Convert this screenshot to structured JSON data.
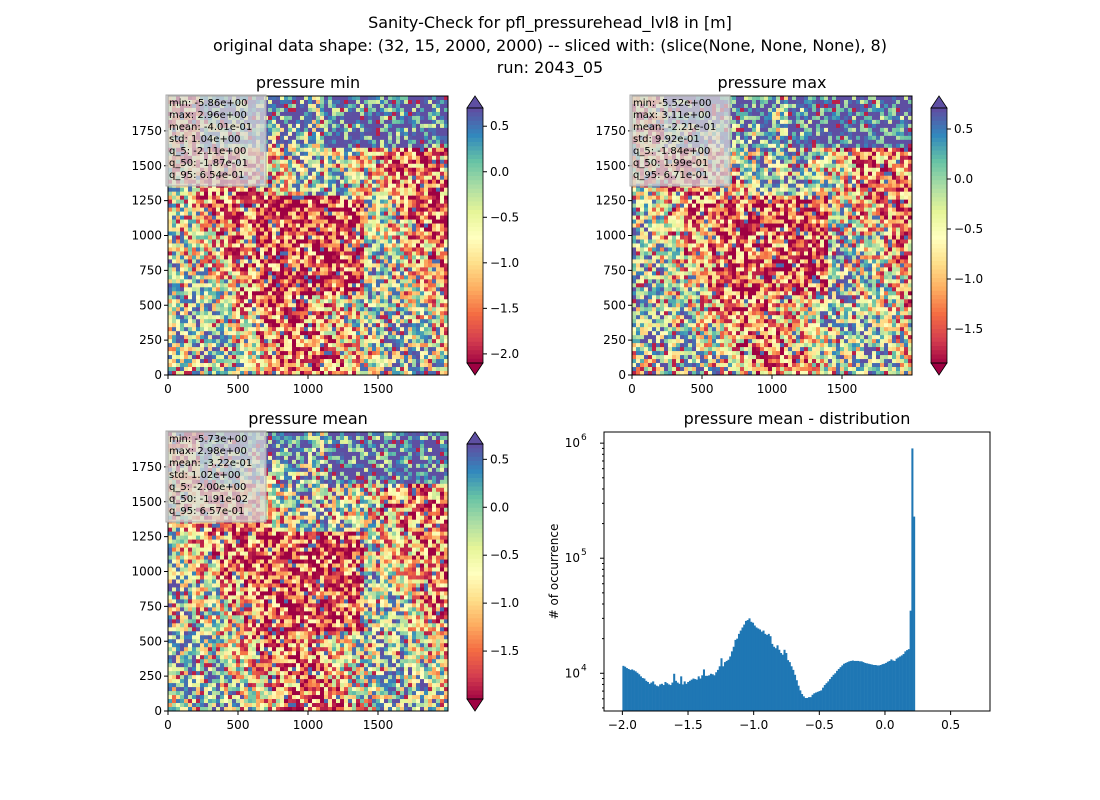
{
  "figure": {
    "title_lines": [
      "Sanity-Check for pfl_pressurehead_lvl8 in [m]",
      "original data shape: (32, 15, 2000, 2000) -- sliced with: (slice(None, None, None), 8)",
      "run: 2043_05"
    ]
  },
  "chart_data": [
    {
      "type": "heatmap",
      "title": "pressure min",
      "xticks": [
        "0",
        "500",
        "1000",
        "1500"
      ],
      "yticks": [
        "0",
        "250",
        "500",
        "750",
        "1000",
        "1250",
        "1500",
        "1750"
      ],
      "xlim": [
        0,
        2000
      ],
      "ylim": [
        0,
        2000
      ],
      "colorbar": {
        "ticks": [
          0.5,
          0.0,
          -0.5,
          -1.0,
          -1.5,
          -2.0
        ],
        "tick_labels": [
          "0.5",
          "0.0",
          "−0.5",
          "−1.0",
          "−1.5",
          "−2.0"
        ],
        "range": [
          -2.1,
          0.7
        ],
        "colormap": "Spectral",
        "extend": "both"
      },
      "stats": [
        "min: -5.86e+00",
        "max: 2.96e+00",
        "mean: -4.01e-01",
        "std: 1.04e+00",
        "q_5: -2.11e+00",
        "q_50: -1.87e-01",
        "q_95: 6.54e-01"
      ]
    },
    {
      "type": "heatmap",
      "title": "pressure max",
      "xticks": [
        "0",
        "500",
        "1000",
        "1500"
      ],
      "yticks": [
        "0",
        "250",
        "500",
        "750",
        "1000",
        "1250",
        "1500",
        "1750"
      ],
      "xlim": [
        0,
        2000
      ],
      "ylim": [
        0,
        2000
      ],
      "colorbar": {
        "ticks": [
          0.5,
          0.0,
          -0.5,
          -1.0,
          -1.5
        ],
        "tick_labels": [
          "0.5",
          "0.0",
          "−0.5",
          "−1.0",
          "−1.5"
        ],
        "range": [
          -1.84,
          0.71
        ],
        "colormap": "Spectral",
        "extend": "both"
      },
      "stats": [
        "min: -5.52e+00",
        "max: 3.11e+00",
        "mean: -2.21e-01",
        "std: 9.92e-01",
        "q_5: -1.84e+00",
        "q_50: 1.99e-01",
        "q_95: 6.71e-01"
      ]
    },
    {
      "type": "heatmap",
      "title": "pressure mean",
      "xticks": [
        "0",
        "500",
        "1000",
        "1500"
      ],
      "yticks": [
        "0",
        "250",
        "500",
        "750",
        "1000",
        "1250",
        "1500",
        "1750"
      ],
      "xlim": [
        0,
        2000
      ],
      "ylim": [
        0,
        2000
      ],
      "colorbar": {
        "ticks": [
          0.5,
          0.0,
          -0.5,
          -1.0,
          -1.5
        ],
        "tick_labels": [
          "0.5",
          "0.0",
          "−0.5",
          "−1.0",
          "−1.5"
        ],
        "range": [
          -2.0,
          0.66
        ],
        "colormap": "Spectral",
        "extend": "both"
      },
      "stats": [
        "min: -5.73e+00",
        "max: 2.98e+00",
        "mean: -3.22e-01",
        "std: 1.02e+00",
        "q_5: -2.00e+00",
        "q_50: -1.91e-02",
        "q_95: 6.57e-01"
      ]
    },
    {
      "type": "bar",
      "title": "pressure mean - distribution",
      "xlabel": "",
      "ylabel": "# of occurrence",
      "xlim": [
        -2.14,
        0.8
      ],
      "ylim": [
        4700,
        1250000
      ],
      "log_y": true,
      "xticks": [
        -2.0,
        -1.5,
        -1.0,
        -0.5,
        0.0,
        0.5
      ],
      "xtick_labels": [
        "−2.0",
        "−1.5",
        "−1.0",
        "−0.5",
        "0.0",
        "0.5"
      ],
      "ytick_labels": [
        {
          "value": 10000,
          "label": "10",
          "exp": "4"
        },
        {
          "value": 100000,
          "label": "10",
          "exp": "5"
        },
        {
          "value": 1000000,
          "label": "10",
          "exp": "6"
        }
      ],
      "bar_color": "#1f77b4",
      "hist": {
        "x_start": -2.0,
        "bin_width": 0.01334,
        "counts": [
          11600,
          11400,
          11100,
          10900,
          10700,
          10800,
          10600,
          10400,
          10100,
          9800,
          9400,
          9100,
          9000,
          8600,
          8400,
          8100,
          8300,
          8500,
          8000,
          7800,
          7700,
          8000,
          8100,
          7900,
          8400,
          8200,
          8000,
          7900,
          8300,
          9900,
          8600,
          8300,
          8100,
          9400,
          8000,
          8500,
          8100,
          8400,
          8600,
          8800,
          9000,
          8900,
          8800,
          9400,
          9000,
          9600,
          10800,
          9500,
          9500,
          9600,
          9900,
          9800,
          9600,
          10200,
          10700,
          11500,
          13500,
          11500,
          12500,
          12800,
          13100,
          14000,
          15500,
          17000,
          19500,
          20000,
          22000,
          23500,
          25000,
          26500,
          28500,
          29000,
          30000,
          28000,
          27500,
          26000,
          25000,
          24500,
          24000,
          23000,
          23500,
          22000,
          21500,
          22000,
          21000,
          18000,
          17000,
          16500,
          17500,
          16000,
          15000,
          14500,
          16000,
          15000,
          13000,
          12500,
          11500,
          10700,
          9700,
          8700,
          7800,
          7100,
          6600,
          6300,
          6100,
          6100,
          6200,
          6200,
          6500,
          6700,
          6800,
          6900,
          7000,
          7100,
          7500,
          7900,
          8200,
          8500,
          8900,
          9300,
          9700,
          10000,
          10500,
          10900,
          11300,
          11700,
          12100,
          12300,
          12500,
          12700,
          12800,
          12900,
          12800,
          12800,
          12800,
          12700,
          12700,
          12500,
          12300,
          12200,
          12100,
          12000,
          11900,
          11800,
          11800,
          11700,
          11700,
          11800,
          12000,
          12100,
          12300,
          12600,
          12800,
          13200,
          12900,
          12800,
          13400,
          13700,
          14000,
          14300,
          14700,
          15500,
          15900,
          16200,
          35000,
          900000,
          230000
        ]
      }
    }
  ]
}
